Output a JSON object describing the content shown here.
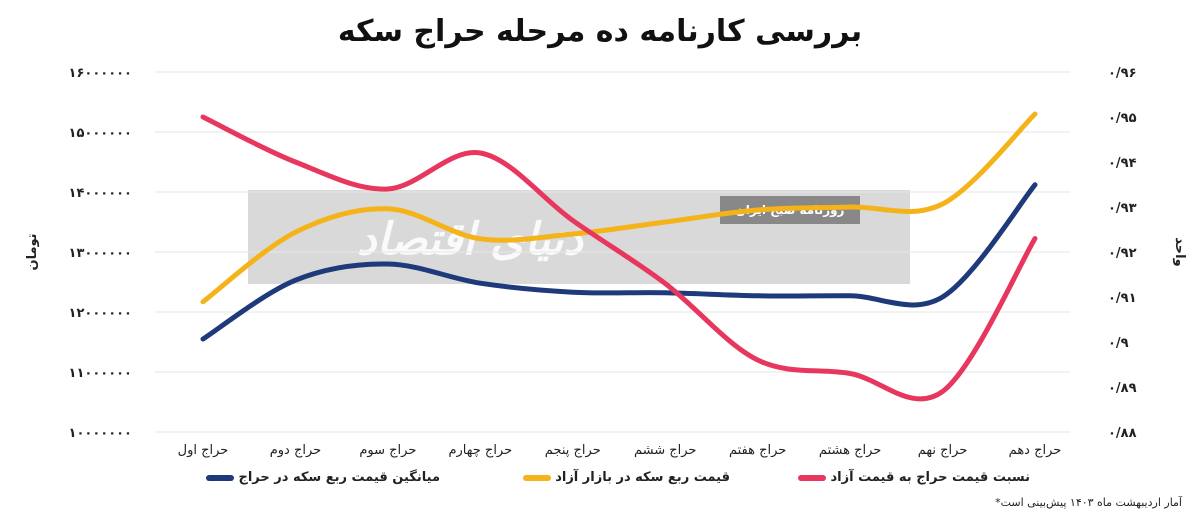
{
  "chart_data": {
    "type": "line",
    "title": "بررسی کارنامه ده مرحله حراج سکه",
    "categories": [
      "حراج اول",
      "حراج دوم",
      "حراج سوم",
      "حراج چهارم",
      "حراج پنجم",
      "حراج ششم",
      "حراج هفتم",
      "حراج هشتم",
      "حراج نهم",
      "حراج دهم"
    ],
    "ylabel_left": "تومان",
    "ylabel_right": "واحد",
    "ylim_left": [
      10000000,
      16000000
    ],
    "ylim_right": [
      0.88,
      0.96
    ],
    "yticks_left": [
      "۱۰۰۰۰۰۰۰",
      "۱۱۰۰۰۰۰۰",
      "۱۲۰۰۰۰۰۰",
      "۱۳۰۰۰۰۰۰",
      "۱۴۰۰۰۰۰۰",
      "۱۵۰۰۰۰۰۰",
      "۱۶۰۰۰۰۰۰"
    ],
    "yticks_right": [
      "۰/۸۸",
      "۰/۸۹",
      "۰/۹",
      "۰/۹۱",
      "۰/۹۲",
      "۰/۹۳",
      "۰/۹۴",
      "۰/۹۵",
      "۰/۹۶"
    ],
    "grid": true,
    "legend_position": "bottom",
    "series": [
      {
        "name": "میانگین قیمت ربع سکه در حراج",
        "axis": "left",
        "color": "#1f3a7a",
        "values": [
          11550000,
          12530000,
          12800000,
          12480000,
          12330000,
          12320000,
          12270000,
          12270000,
          12250000,
          14120000
        ]
      },
      {
        "name": "قیمت ربع سکه در بازار آزاد",
        "axis": "left",
        "color": "#f5b31a",
        "values": [
          12170000,
          13330000,
          13720000,
          13220000,
          13300000,
          13500000,
          13700000,
          13750000,
          13800000,
          15300000
        ]
      },
      {
        "name": "نسبت قیمت حراج به قیمت آزاد",
        "axis": "right",
        "color": "#e8375e",
        "values": [
          0.95,
          0.94,
          0.934,
          0.942,
          0.927,
          0.913,
          0.896,
          0.893,
          0.889,
          0.923
        ]
      }
    ]
  },
  "watermark": {
    "newspaper": "روزنامه صبح ایران",
    "logo": "دنیای اقتصاد"
  },
  "note": "آمار اردیبهشت ماه ۱۴۰۳ پیش‌بینی است*"
}
